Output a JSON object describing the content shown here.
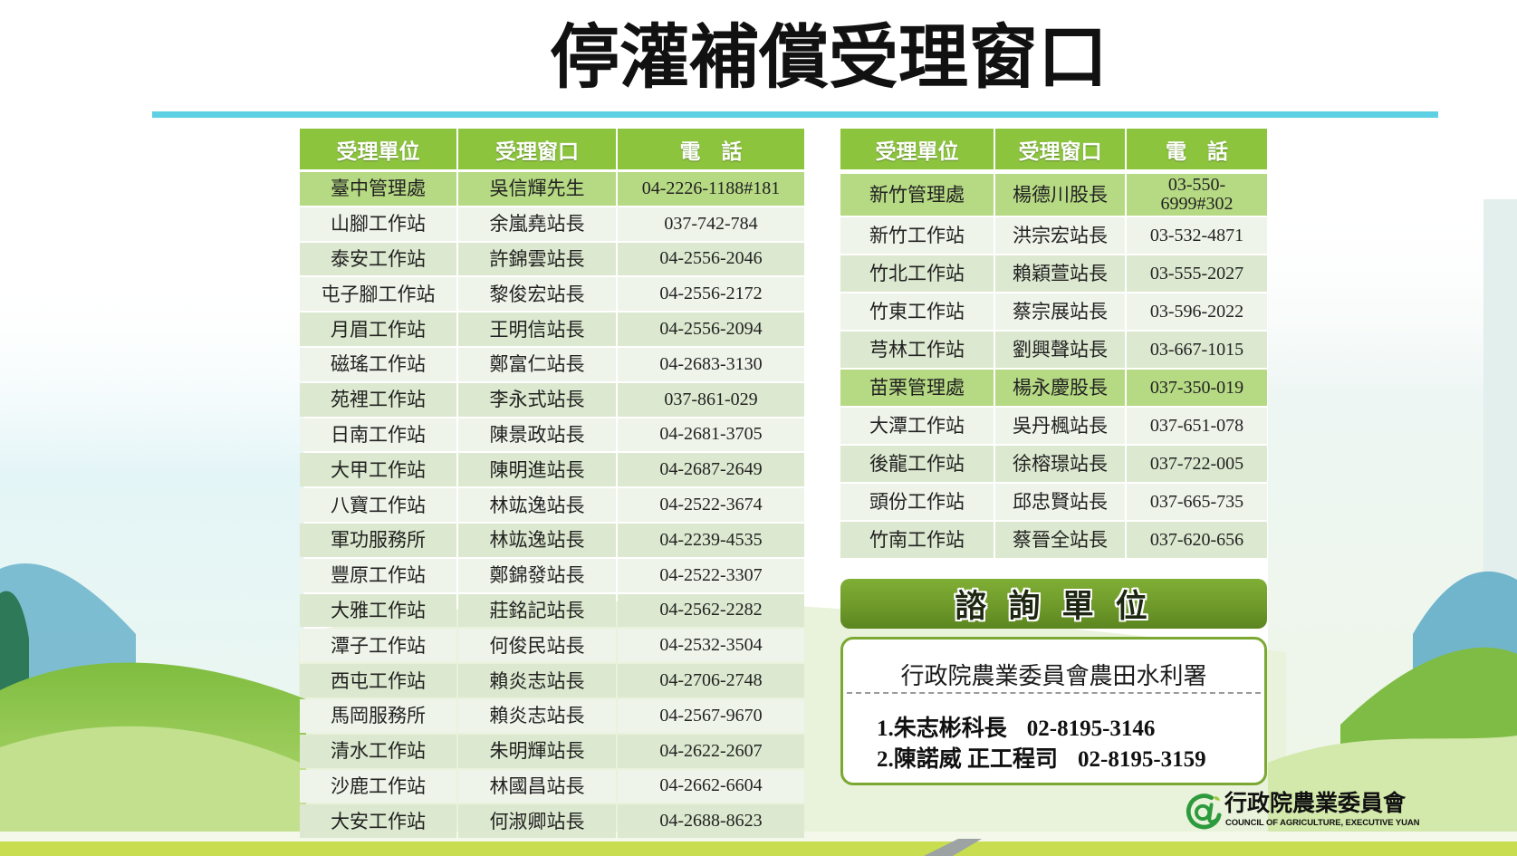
{
  "title": "停灌補償受理窗口",
  "colors": {
    "header_bg": "#8cc43e",
    "highlight_bg": "#b6d983",
    "stripe_light": "#eef4ea",
    "stripe_dark": "#dce8cf",
    "accent_line": "#5dd0e4",
    "consult_bar": "#6f9a2a"
  },
  "left_table": {
    "headers": [
      "受理單位",
      "受理窗口",
      "電　話"
    ],
    "rows": [
      {
        "unit": "臺中管理處",
        "contact": "吳信輝先生",
        "phone": "04-2226-1188#181",
        "highlight": true
      },
      {
        "unit": "山腳工作站",
        "contact": "余嵐堯站長",
        "phone": "037-742-784"
      },
      {
        "unit": "泰安工作站",
        "contact": "許錦雲站長",
        "phone": "04-2556-2046"
      },
      {
        "unit": "屯子腳工作站",
        "contact": "黎俊宏站長",
        "phone": "04-2556-2172"
      },
      {
        "unit": "月眉工作站",
        "contact": "王明信站長",
        "phone": "04-2556-2094"
      },
      {
        "unit": "磁瑤工作站",
        "contact": "鄭富仁站長",
        "phone": "04-2683-3130"
      },
      {
        "unit": "苑裡工作站",
        "contact": "李永式站長",
        "phone": "037-861-029"
      },
      {
        "unit": "日南工作站",
        "contact": "陳景政站長",
        "phone": "04-2681-3705"
      },
      {
        "unit": "大甲工作站",
        "contact": "陳明進站長",
        "phone": "04-2687-2649"
      },
      {
        "unit": "八寶工作站",
        "contact": "林竑逸站長",
        "phone": "04-2522-3674"
      },
      {
        "unit": "軍功服務所",
        "contact": "林竑逸站長",
        "phone": "04-2239-4535"
      },
      {
        "unit": "豐原工作站",
        "contact": "鄭錦發站長",
        "phone": "04-2522-3307"
      },
      {
        "unit": "大雅工作站",
        "contact": "莊銘記站長",
        "phone": "04-2562-2282"
      },
      {
        "unit": "潭子工作站",
        "contact": "何俊民站長",
        "phone": "04-2532-3504"
      },
      {
        "unit": "西屯工作站",
        "contact": "賴炎志站長",
        "phone": "04-2706-2748"
      },
      {
        "unit": "馬岡服務所",
        "contact": "賴炎志站長",
        "phone": "04-2567-9670"
      },
      {
        "unit": "清水工作站",
        "contact": "朱明輝站長",
        "phone": "04-2622-2607"
      },
      {
        "unit": "沙鹿工作站",
        "contact": "林國昌站長",
        "phone": "04-2662-6604"
      },
      {
        "unit": "大安工作站",
        "contact": "何淑卿站長",
        "phone": "04-2688-8623"
      }
    ]
  },
  "right_table": {
    "headers": [
      "受理單位",
      "受理窗口",
      "電　話"
    ],
    "rows": [
      {
        "unit": "新竹管理處",
        "contact": "楊德川股長",
        "phone": "03-550-\n6999#302",
        "highlight": true
      },
      {
        "unit": "新竹工作站",
        "contact": "洪宗宏站長",
        "phone": "03-532-4871"
      },
      {
        "unit": "竹北工作站",
        "contact": "賴穎萱站長",
        "phone": "03-555-2027"
      },
      {
        "unit": "竹東工作站",
        "contact": "蔡宗展站長",
        "phone": "03-596-2022"
      },
      {
        "unit": "芎林工作站",
        "contact": "劉興聲站長",
        "phone": "03-667-1015"
      },
      {
        "unit": "苗栗管理處",
        "contact": "楊永慶股長",
        "phone": "037-350-019",
        "highlight": true
      },
      {
        "unit": "大潭工作站",
        "contact": "吳丹楓站長",
        "phone": "037-651-078"
      },
      {
        "unit": "後龍工作站",
        "contact": "徐榕璟站長",
        "phone": "037-722-005"
      },
      {
        "unit": "頭份工作站",
        "contact": "邱忠賢站長",
        "phone": "037-665-735"
      },
      {
        "unit": "竹南工作站",
        "contact": "蔡晉全站長",
        "phone": "037-620-656"
      }
    ]
  },
  "consult": {
    "heading": "諮 詢 單 位",
    "org": "行政院農業委員會農田水利署",
    "contacts": [
      {
        "name": "1.朱志彬科長",
        "phone": "02-8195-3146"
      },
      {
        "name": "2.陳諾威 正工程司",
        "phone": "02-8195-3159"
      }
    ]
  },
  "logo": {
    "icon": "coa-emblem-icon",
    "name_zh": "行政院農業委員會",
    "name_en": "COUNCIL OF AGRICULTURE, EXECUTIVE YUAN"
  }
}
